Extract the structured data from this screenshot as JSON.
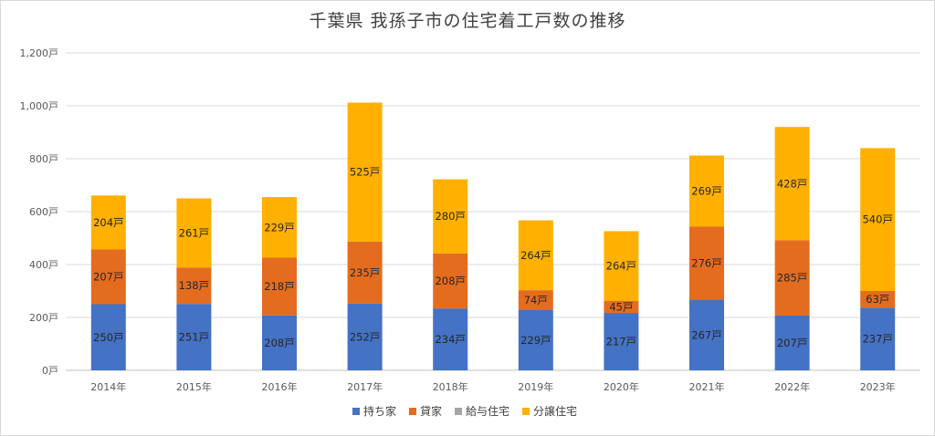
{
  "chart_data": {
    "type": "bar",
    "stacked": true,
    "title": "千葉県 我孫子市の住宅着工戸数の推移",
    "categories": [
      "2014年",
      "2015年",
      "2016年",
      "2017年",
      "2018年",
      "2019年",
      "2020年",
      "2021年",
      "2022年",
      "2023年"
    ],
    "series": [
      {
        "name": "持ち家",
        "color": "#4472c4",
        "values": [
          250,
          251,
          208,
          252,
          234,
          229,
          217,
          267,
          207,
          237
        ]
      },
      {
        "name": "貸家",
        "color": "#e46c1f",
        "values": [
          207,
          138,
          218,
          235,
          208,
          74,
          45,
          276,
          285,
          63
        ]
      },
      {
        "name": "給与住宅",
        "color": "#a5a5a5",
        "values": [
          0,
          0,
          0,
          0,
          0,
          0,
          0,
          0,
          0,
          0
        ]
      },
      {
        "name": "分譲住宅",
        "color": "#ffb000",
        "values": [
          204,
          261,
          229,
          525,
          280,
          264,
          264,
          269,
          428,
          540
        ]
      }
    ],
    "value_suffix": "戸",
    "ylim": [
      0,
      1200
    ],
    "yticks": [
      "0戸",
      "200戸",
      "400戸",
      "600戸",
      "800戸",
      "1,000戸",
      "1,200戸"
    ],
    "ytick_values": [
      0,
      200,
      400,
      600,
      800,
      1000,
      1200
    ],
    "grid": true,
    "legend_position": "bottom"
  }
}
